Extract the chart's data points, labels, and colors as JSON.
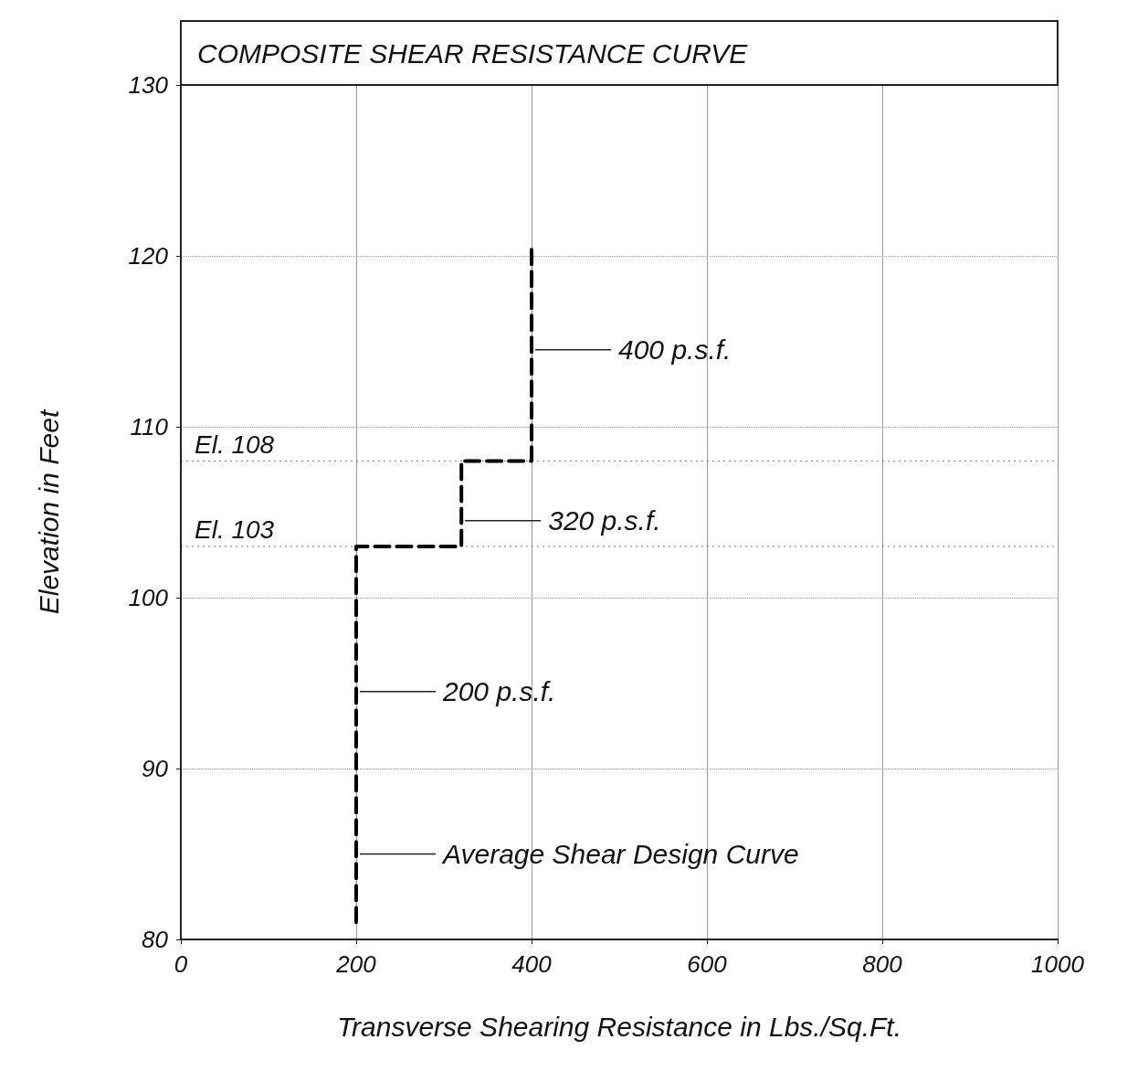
{
  "chart_data": {
    "type": "line",
    "title": "COMPOSITE SHEAR RESISTANCE CURVE",
    "xlabel": "Transverse Shearing Resistance in Lbs./Sq.Ft.",
    "ylabel": "Elevation in Feet",
    "series": [
      {
        "color": "#000000",
        "x": [
          200,
          200,
          320,
          320,
          400,
          400
        ],
        "values": [
          81,
          103,
          103,
          108,
          108,
          120.5
        ]
      }
    ],
    "xlim": [
      0,
      1000
    ],
    "xticks": [
      0,
      200,
      400,
      600,
      800,
      1000
    ],
    "ylim": [
      80,
      130
    ],
    "yticks": [
      80,
      90,
      100,
      110,
      120,
      130
    ],
    "grid": true,
    "marker": "none",
    "line_style": "dashed",
    "ref_lines": [
      {
        "axis": "y",
        "value": 108,
        "label": "El. 108",
        "line_style": "dotted"
      },
      {
        "axis": "y",
        "value": 103,
        "label": "El. 103",
        "line_style": "dotted"
      }
    ],
    "annotations": [
      {
        "text": "400 p.s.f.",
        "x": 400,
        "y": 114.5
      },
      {
        "text": "320 p.s.f.",
        "x": 320,
        "y": 104.5
      },
      {
        "text": "200 p.s.f.",
        "x": 200,
        "y": 94.5
      },
      {
        "text": "Average Shear Design Curve",
        "x": 200,
        "y": 85
      }
    ]
  }
}
